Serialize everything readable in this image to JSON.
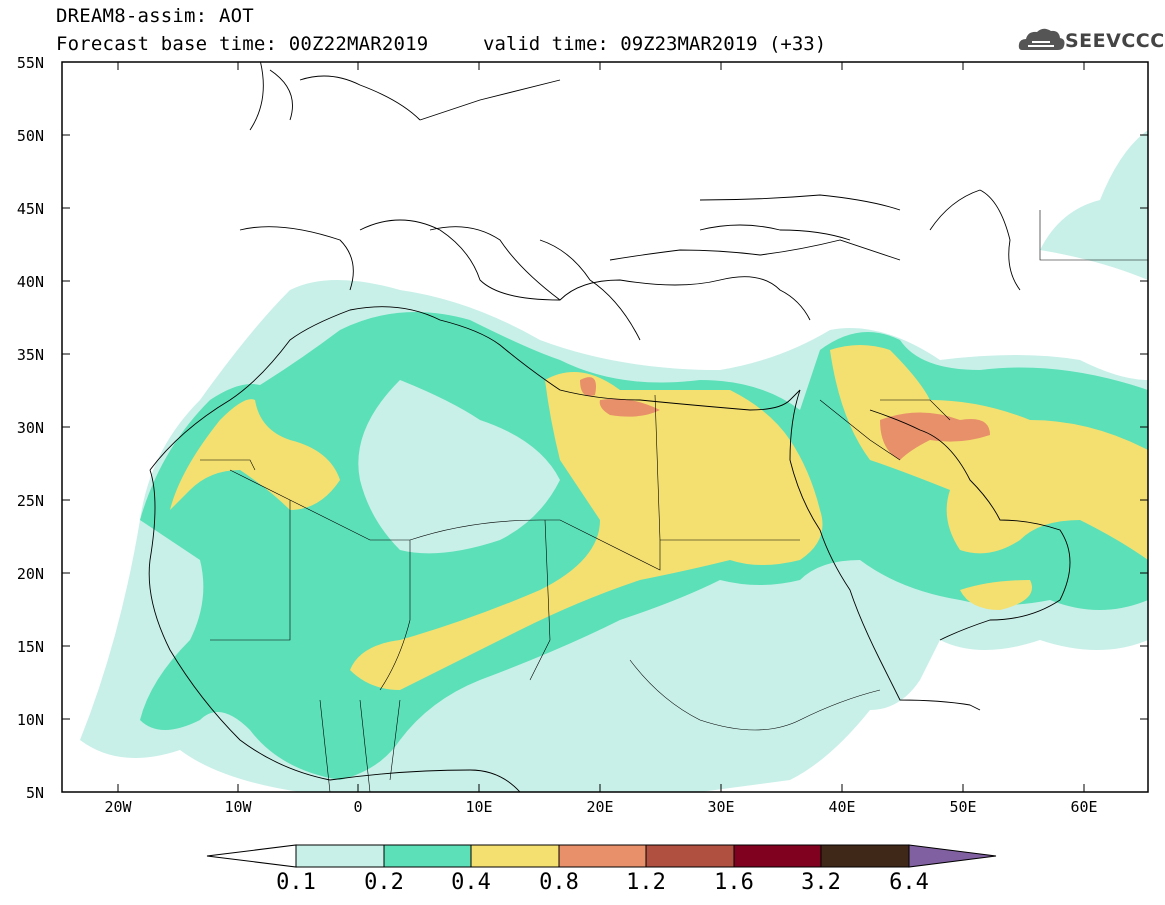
{
  "header": {
    "line1": "DREAM8-assim: AOT",
    "line2": "Forecast base time: 00Z22MAR2019",
    "valid": "valid time: 09Z23MAR2019 (+33)",
    "logo": "SEEVCCC"
  },
  "axes": {
    "lat_labels": [
      "55N",
      "50N",
      "45N",
      "40N",
      "35N",
      "30N",
      "25N",
      "20N",
      "15N",
      "10N",
      "5N"
    ],
    "lon_labels": [
      "20W",
      "10W",
      "0",
      "10E",
      "20E",
      "30E",
      "40E",
      "50E",
      "60E"
    ]
  },
  "legend": {
    "thresholds": [
      "0.1",
      "0.2",
      "0.4",
      "0.8",
      "1.2",
      "1.6",
      "3.2",
      "6.4"
    ],
    "colors": [
      "#ffffff",
      "#c8f0e8",
      "#5ce0b8",
      "#f4e070",
      "#e8906a",
      "#b05040",
      "#800020",
      "#402818",
      "#8060a0"
    ]
  }
}
